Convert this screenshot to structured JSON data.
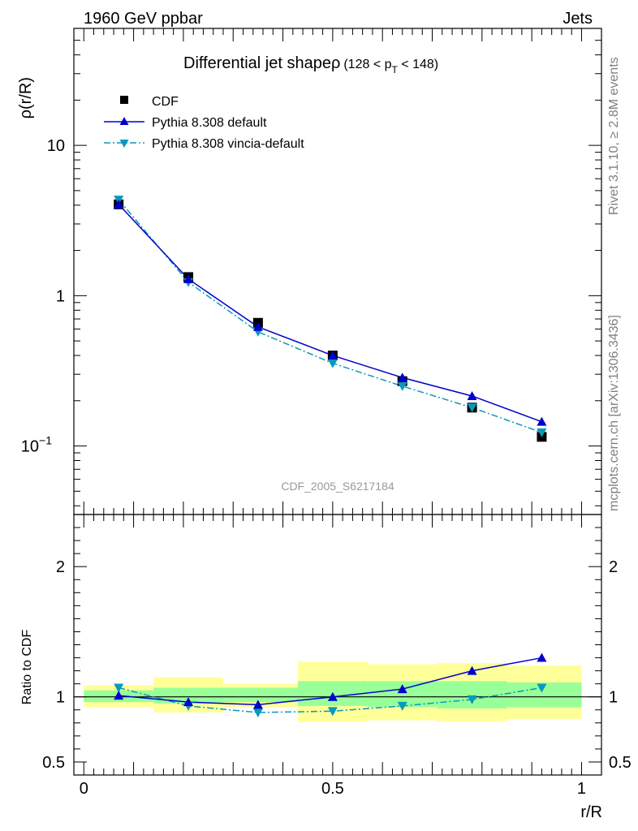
{
  "header": {
    "left": "1960 GeV ppbar",
    "right": "Jets"
  },
  "side_labels": {
    "top": "Rivet 3.1.10, ≥ 2.8M events",
    "bottom": "mcplots.cern.ch [arXiv:1306.3436]"
  },
  "watermark": "CDF_2005_S6217184",
  "colors": {
    "data": "#000000",
    "pythia_default": "#0000cc",
    "pythia_vincia": "#0899bb",
    "band_inner": "#99ff99",
    "band_outer": "#ffff99"
  },
  "chart_data": [
    {
      "type": "scatter",
      "title_main": "Differential jet shapeρ",
      "title_sub": "(128 < p",
      "title_sub_index": "T",
      "title_sub_end": " < 148)",
      "ylabel": "ρ(r/R)",
      "yscale": "log",
      "xlim": [
        -0.02,
        1.04
      ],
      "ylim": [
        0.035,
        60
      ],
      "y_ticks": [
        {
          "value": 10,
          "label": "10"
        },
        {
          "value": 1,
          "label": "1"
        },
        {
          "value": 0.1,
          "label": "10",
          "exp": "−1"
        }
      ],
      "legend_position": "top-left",
      "x": [
        0.07,
        0.21,
        0.35,
        0.5,
        0.64,
        0.78,
        0.92
      ],
      "series": [
        {
          "name": "CDF",
          "style": "data-square",
          "values": [
            4.05,
            1.33,
            0.66,
            0.4,
            0.27,
            0.18,
            0.115
          ]
        },
        {
          "name": "Pythia 8.308 default",
          "style": "line-triangle-up",
          "values": [
            4.05,
            1.29,
            0.62,
            0.4,
            0.285,
            0.215,
            0.145
          ]
        },
        {
          "name": "Pythia 8.308 vincia-default",
          "style": "dashdot-triangle-down",
          "values": [
            4.35,
            1.23,
            0.575,
            0.355,
            0.25,
            0.18,
            0.123
          ]
        }
      ]
    },
    {
      "type": "line",
      "ylabel": "Ratio to CDF",
      "xlabel": "r/R",
      "xlim": [
        -0.02,
        1.04
      ],
      "ylim": [
        0.4,
        2.4
      ],
      "x_ticks": [
        {
          "value": 0,
          "label": "0"
        },
        {
          "value": 0.5,
          "label": "0.5"
        },
        {
          "value": 1,
          "label": "1"
        }
      ],
      "y_ticks": [
        {
          "value": 2,
          "label": "2"
        },
        {
          "value": 1,
          "label": "1"
        },
        {
          "value": 0.5,
          "label": "0.5"
        }
      ],
      "bins": [
        {
          "x0": 0.0,
          "x1": 0.14,
          "inner": [
            0.96,
            1.05
          ],
          "outer": [
            0.92,
            1.09
          ]
        },
        {
          "x0": 0.14,
          "x1": 0.28,
          "inner": [
            0.95,
            1.07
          ],
          "outer": [
            0.88,
            1.15
          ]
        },
        {
          "x0": 0.28,
          "x1": 0.43,
          "inner": [
            0.96,
            1.07
          ],
          "outer": [
            0.92,
            1.1
          ]
        },
        {
          "x0": 0.43,
          "x1": 0.57,
          "inner": [
            0.93,
            1.12
          ],
          "outer": [
            0.81,
            1.27
          ]
        },
        {
          "x0": 0.57,
          "x1": 0.71,
          "inner": [
            0.92,
            1.12
          ],
          "outer": [
            0.82,
            1.25
          ]
        },
        {
          "x0": 0.71,
          "x1": 0.85,
          "inner": [
            0.91,
            1.12
          ],
          "outer": [
            0.81,
            1.26
          ]
        },
        {
          "x0": 0.85,
          "x1": 1.0,
          "inner": [
            0.92,
            1.11
          ],
          "outer": [
            0.83,
            1.24
          ]
        }
      ],
      "x": [
        0.07,
        0.21,
        0.35,
        0.5,
        0.64,
        0.78,
        0.92
      ],
      "series": [
        {
          "name": "Pythia 8.308 default",
          "style": "line-triangle-up",
          "values": [
            1.01,
            0.96,
            0.94,
            1.0,
            1.06,
            1.2,
            1.3
          ]
        },
        {
          "name": "Pythia 8.308 vincia-default",
          "style": "dashdot-triangle-down",
          "values": [
            1.07,
            0.93,
            0.88,
            0.89,
            0.93,
            0.98,
            1.07
          ]
        }
      ]
    }
  ]
}
